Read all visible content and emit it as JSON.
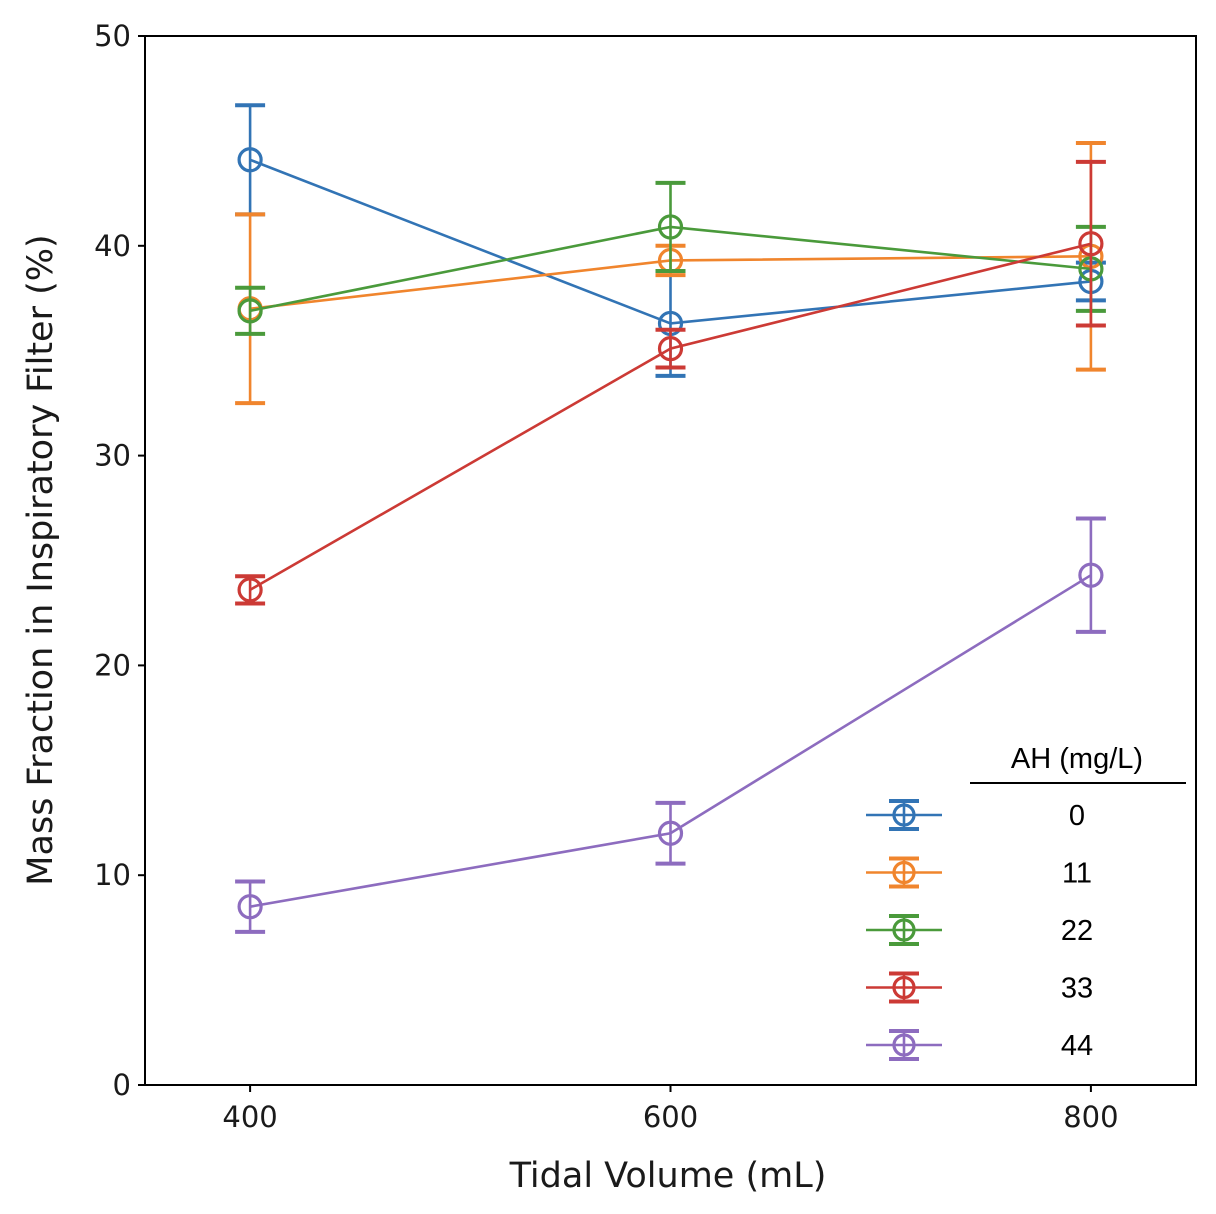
{
  "chart_data": {
    "type": "line",
    "title": "",
    "xlabel": "Tidal Volume (mL)",
    "ylabel": "Mass Fraction in Inspiratory Filter (%)",
    "x": [
      400,
      600,
      800
    ],
    "xlim": [
      350,
      850
    ],
    "ylim": [
      0,
      50
    ],
    "xticks": [
      400,
      600,
      800
    ],
    "yticks": [
      0,
      10,
      20,
      30,
      40,
      50
    ],
    "grid": false,
    "marker": "open-circle",
    "error_bars": true,
    "legend": {
      "title": "AH (mg/L)",
      "placement": "lower-right"
    },
    "series": [
      {
        "name": "0",
        "color": "#3274b5",
        "values": [
          44.1,
          36.3,
          38.3
        ],
        "errors": [
          2.6,
          2.5,
          0.9
        ]
      },
      {
        "name": "11",
        "color": "#f0852d",
        "values": [
          37.0,
          39.3,
          39.5
        ],
        "errors": [
          4.5,
          0.7,
          5.4
        ]
      },
      {
        "name": "22",
        "color": "#4a9a3b",
        "values": [
          36.9,
          40.9,
          38.9
        ],
        "errors": [
          1.1,
          2.1,
          2.0
        ]
      },
      {
        "name": "33",
        "color": "#cc3a35",
        "values": [
          23.6,
          35.1,
          40.1
        ],
        "errors": [
          0.65,
          0.9,
          3.9
        ]
      },
      {
        "name": "44",
        "color": "#8d6cbf",
        "values": [
          8.5,
          12.0,
          24.3
        ],
        "errors": [
          1.2,
          1.45,
          2.7
        ]
      }
    ]
  }
}
